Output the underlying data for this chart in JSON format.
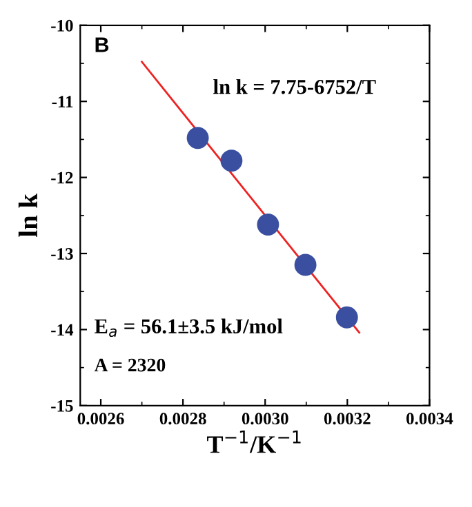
{
  "chart_data": {
    "type": "scatter",
    "xlabel": "T$^{−1}$/K$^{−1}$",
    "ylabel": "ln k",
    "annotations": [
      "B",
      "ln k = 7.75-6752/T",
      "E$_{a}$ = 56.1±3.5 kJ/mol",
      "A = 2320"
    ],
    "xlim": [
      0.00255,
      0.0034
    ],
    "ylim": [
      -15,
      -10
    ],
    "xticks": [
      {
        "value": 0.0026,
        "label": "0.0026"
      },
      {
        "value": 0.0028,
        "label": "0.0028"
      },
      {
        "value": 0.003,
        "label": "0.0030"
      },
      {
        "value": 0.0032,
        "label": "0.0032"
      },
      {
        "value": 0.0034,
        "label": "0.0034"
      }
    ],
    "yticks": [
      -15,
      -14,
      -13,
      -12,
      -11,
      -10
    ],
    "grid": false,
    "marker": "circle",
    "series": [
      {
        "color": "#3a4fa0",
        "x": [
          0.002836,
          0.002918,
          0.003007,
          0.003098,
          0.003199
        ],
        "values": [
          -11.48,
          -11.78,
          -12.62,
          -13.15,
          -13.84
        ]
      },
      {
        "type": "line",
        "color": "#ee2222",
        "marker": "none",
        "x": [
          0.0027,
          0.003229
        ],
        "values": [
          -10.48,
          -14.04
        ]
      }
    ]
  }
}
